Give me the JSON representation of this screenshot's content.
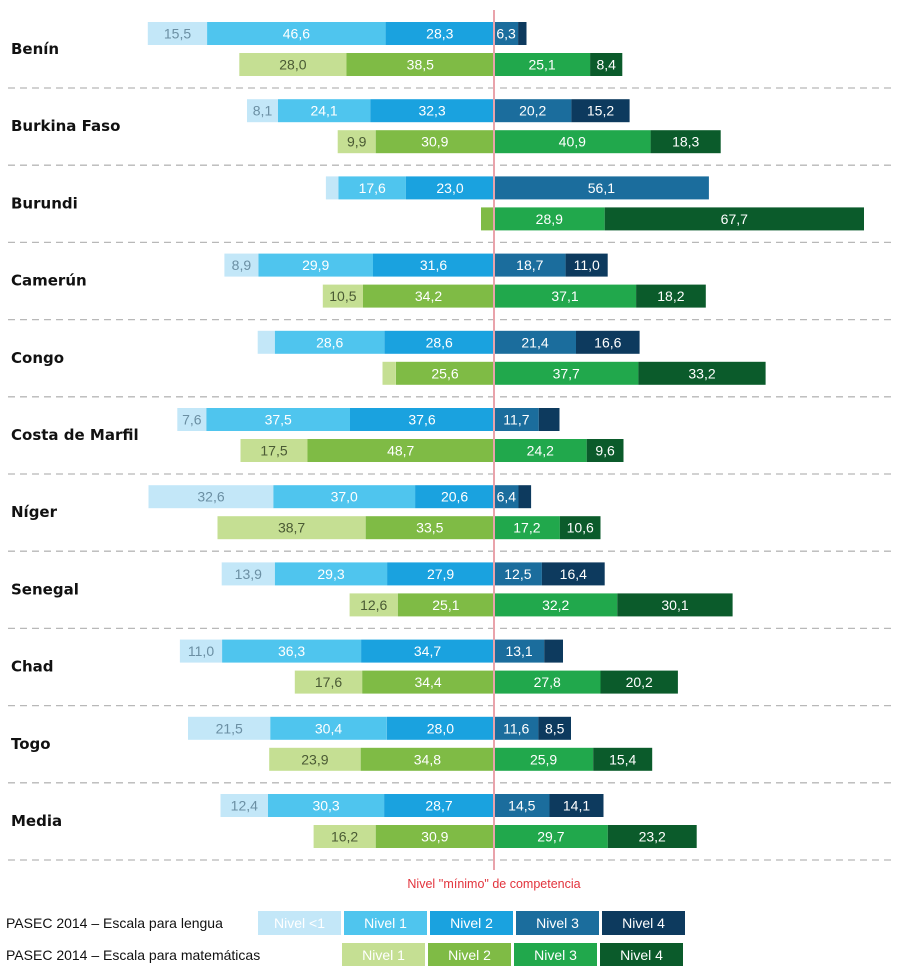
{
  "chart_data": {
    "type": "bar",
    "subtype": "diverging-stacked-horizontal",
    "unit": "percent",
    "baseline_label": "Nivel ''mínimo\" de competencia",
    "countries": [
      "Benín",
      "Burkina Faso",
      "Burundi",
      "Camerún",
      "Congo",
      "Costa de Marfil",
      "Níger",
      "Senegal",
      "Chad",
      "Togo",
      "Media"
    ],
    "series": [
      {
        "name": "PASEC 2014 – Escala para lengua",
        "levels": [
          "Nivel <1",
          "Nivel 1",
          "Nivel 2",
          "Nivel 3",
          "Nivel 4"
        ],
        "colors": [
          "#c3e7f8",
          "#4fc5ee",
          "#1aa2df",
          "#1b6d9d",
          "#0d3a5e"
        ],
        "below_minimum_levels": 3,
        "values": [
          [
            15.5,
            46.6,
            28.3,
            6.3,
            2.2
          ],
          [
            8.1,
            24.1,
            32.3,
            20.2,
            15.2
          ],
          [
            3.3,
            17.6,
            23.0,
            56.1,
            0
          ],
          [
            8.9,
            29.9,
            31.6,
            18.7,
            11.0
          ],
          [
            4.5,
            28.6,
            28.6,
            21.4,
            16.6
          ],
          [
            7.6,
            37.5,
            37.6,
            11.7,
            5.4
          ],
          [
            32.6,
            37.0,
            20.6,
            6.4,
            3.3
          ],
          [
            13.9,
            29.3,
            27.9,
            12.5,
            16.4
          ],
          [
            11.0,
            36.3,
            34.7,
            13.1,
            4.9
          ],
          [
            21.5,
            30.4,
            28.0,
            11.6,
            8.5
          ],
          [
            12.4,
            30.3,
            28.7,
            14.5,
            14.1
          ]
        ],
        "labels": [
          [
            "15,5",
            "46,6",
            "28,3",
            "6,3",
            ""
          ],
          [
            "8,1",
            "24,1",
            "32,3",
            "20,2",
            "15,2"
          ],
          [
            "",
            "17,6",
            "23,0",
            "56,1",
            ""
          ],
          [
            "8,9",
            "29,9",
            "31,6",
            "18,7",
            "11,0"
          ],
          [
            "",
            "28,6",
            "28,6",
            "21,4",
            "16,6"
          ],
          [
            "7,6",
            "37,5",
            "37,6",
            "11,7",
            ""
          ],
          [
            "32,6",
            "37,0",
            "20,6",
            "6,4",
            ""
          ],
          [
            "13,9",
            "29,3",
            "27,9",
            "12,5",
            "16,4"
          ],
          [
            "11,0",
            "36,3",
            "34,7",
            "13,1",
            ""
          ],
          [
            "21,5",
            "30,4",
            "28,0",
            "11,6",
            "8,5"
          ],
          [
            "12,4",
            "30,3",
            "28,7",
            "14,5",
            "14,1"
          ]
        ]
      },
      {
        "name": "PASEC 2014 – Escala para matemáticas",
        "levels": [
          "Nivel 1",
          "Nivel 2",
          "Nivel 3",
          "Nivel 4"
        ],
        "colors": [
          "#c5df93",
          "#7fbb45",
          "#21a84c",
          "#0b5b2b"
        ],
        "below_minimum_levels": 2,
        "values": [
          [
            28.0,
            38.5,
            25.1,
            8.4
          ],
          [
            9.9,
            30.9,
            40.9,
            18.3
          ],
          [
            0,
            3.4,
            28.9,
            67.7
          ],
          [
            10.5,
            34.2,
            37.1,
            18.2
          ],
          [
            3.5,
            25.6,
            37.7,
            33.2
          ],
          [
            17.5,
            48.7,
            24.2,
            9.6
          ],
          [
            38.7,
            33.5,
            17.2,
            10.6
          ],
          [
            12.6,
            25.1,
            32.2,
            30.1
          ],
          [
            17.6,
            34.4,
            27.8,
            20.2
          ],
          [
            23.9,
            34.8,
            25.9,
            15.4
          ],
          [
            16.2,
            30.9,
            29.7,
            23.2
          ]
        ],
        "labels": [
          [
            "28,0",
            "38,5",
            "25,1",
            "8,4"
          ],
          [
            "9,9",
            "30,9",
            "40,9",
            "18,3"
          ],
          [
            "",
            "",
            "28,9",
            "67,7"
          ],
          [
            "10,5",
            "34,2",
            "37,1",
            "18,2"
          ],
          [
            "",
            "25,6",
            "37,7",
            "33,2"
          ],
          [
            "17,5",
            "48,7",
            "24,2",
            "9,6"
          ],
          [
            "38,7",
            "33,5",
            "17,2",
            "10,6"
          ],
          [
            "12,6",
            "25,1",
            "32,2",
            "30,1"
          ],
          [
            "17,6",
            "34,4",
            "27,8",
            "20,2"
          ],
          [
            "23,9",
            "34,8",
            "25,9",
            "15,4"
          ],
          [
            "16,2",
            "30,9",
            "29,7",
            "23,2"
          ]
        ]
      }
    ]
  }
}
